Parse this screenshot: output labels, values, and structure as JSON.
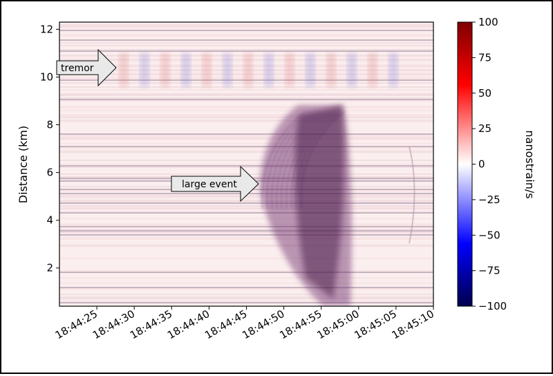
{
  "chart_data": {
    "type": "heatmap",
    "title": "",
    "xlabel": "",
    "ylabel": "Distance (km)",
    "x_tick_labels": [
      "18:44:25",
      "18:44:30",
      "18:44:35",
      "18:44:40",
      "18:44:45",
      "18:44:50",
      "18:44:55",
      "18:45:00",
      "18:45:05",
      "18:45:10"
    ],
    "y_tick_labels": [
      "2",
      "4",
      "6",
      "8",
      "10",
      "12"
    ],
    "y_ticks": [
      2,
      4,
      6,
      8,
      10,
      12
    ],
    "xlim": [
      "18:44:20",
      "18:45:10"
    ],
    "ylim": [
      0.4,
      12.3
    ],
    "colorbar": {
      "label": "nanostrain/s",
      "range": [
        -100,
        100
      ],
      "tick_labels": [
        "100",
        "75",
        "50",
        "25",
        "0",
        "−25",
        "−50",
        "−75",
        "−100"
      ],
      "ticks": [
        100,
        75,
        50,
        25,
        0,
        -25,
        -50,
        -75,
        -100
      ],
      "colormap": "seismic",
      "colors": {
        "negative": "#00004c",
        "zero": "#ffffff",
        "positive": "#7f0000"
      }
    },
    "annotations": [
      {
        "text": "tremor",
        "time": "18:44:22",
        "distance_km": 10.3
      },
      {
        "text": "large event",
        "time": "18:44:39",
        "distance_km": 5.5
      }
    ]
  }
}
